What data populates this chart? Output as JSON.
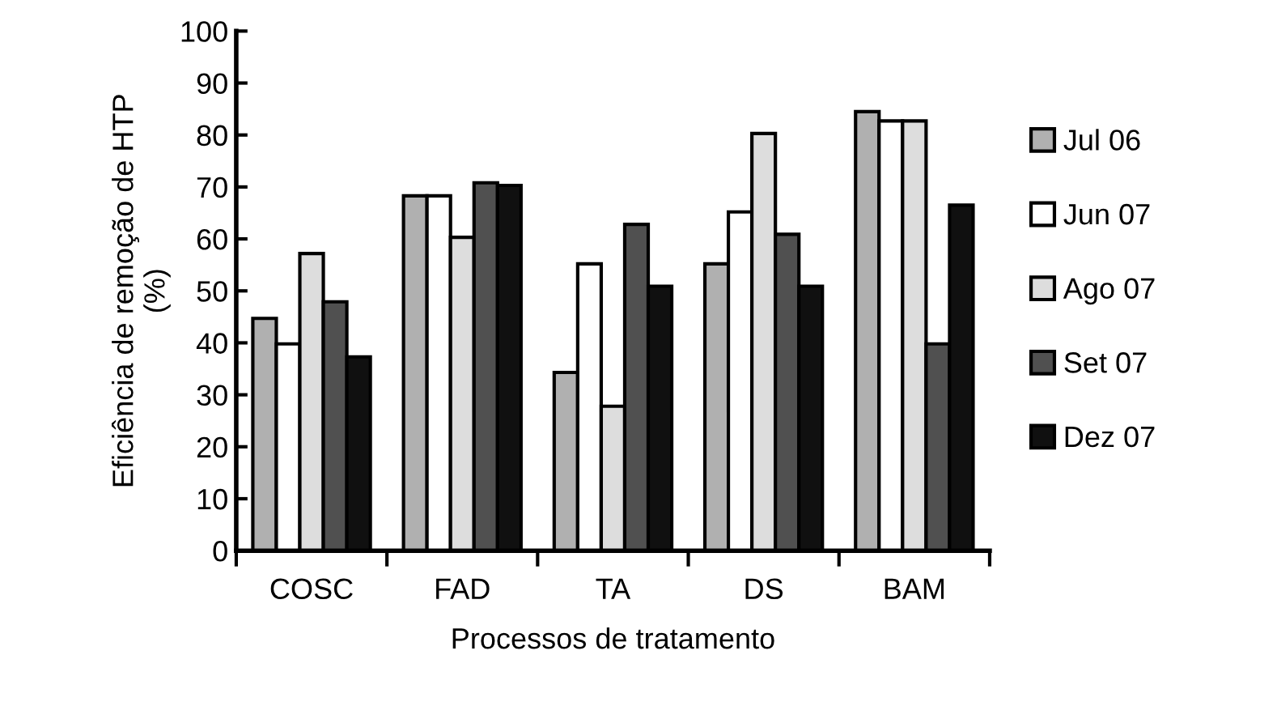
{
  "chart_data": {
    "type": "bar",
    "xlabel": "Processos de tratamento",
    "ylabel": "Eficiência de remoção de HTP\n(%)",
    "categories": [
      "COSC",
      "FAD",
      "TA",
      "DS",
      "BAM"
    ],
    "series": [
      {
        "name": "Jul 06",
        "color": "#b0b0b0",
        "values": [
          44.7,
          68.3,
          34.3,
          55.2,
          84.5
        ]
      },
      {
        "name": "Jun 07",
        "color": "#ffffff",
        "values": [
          39.8,
          68.3,
          55.2,
          65.2,
          82.7
        ]
      },
      {
        "name": "Ago 07",
        "color": "#dddddd",
        "values": [
          57.2,
          60.3,
          27.8,
          80.3,
          82.7
        ]
      },
      {
        "name": "Set 07",
        "color": "#505050",
        "values": [
          47.9,
          70.8,
          62.8,
          60.9,
          39.8
        ]
      },
      {
        "name": "Dez 07",
        "color": "#101010",
        "values": [
          37.3,
          70.3,
          50.9,
          50.9,
          66.5
        ]
      }
    ],
    "ylim": [
      0,
      100
    ],
    "yticks": [
      0,
      10,
      20,
      30,
      40,
      50,
      60,
      70,
      80,
      90,
      100
    ],
    "grid": false,
    "legend": "right"
  }
}
